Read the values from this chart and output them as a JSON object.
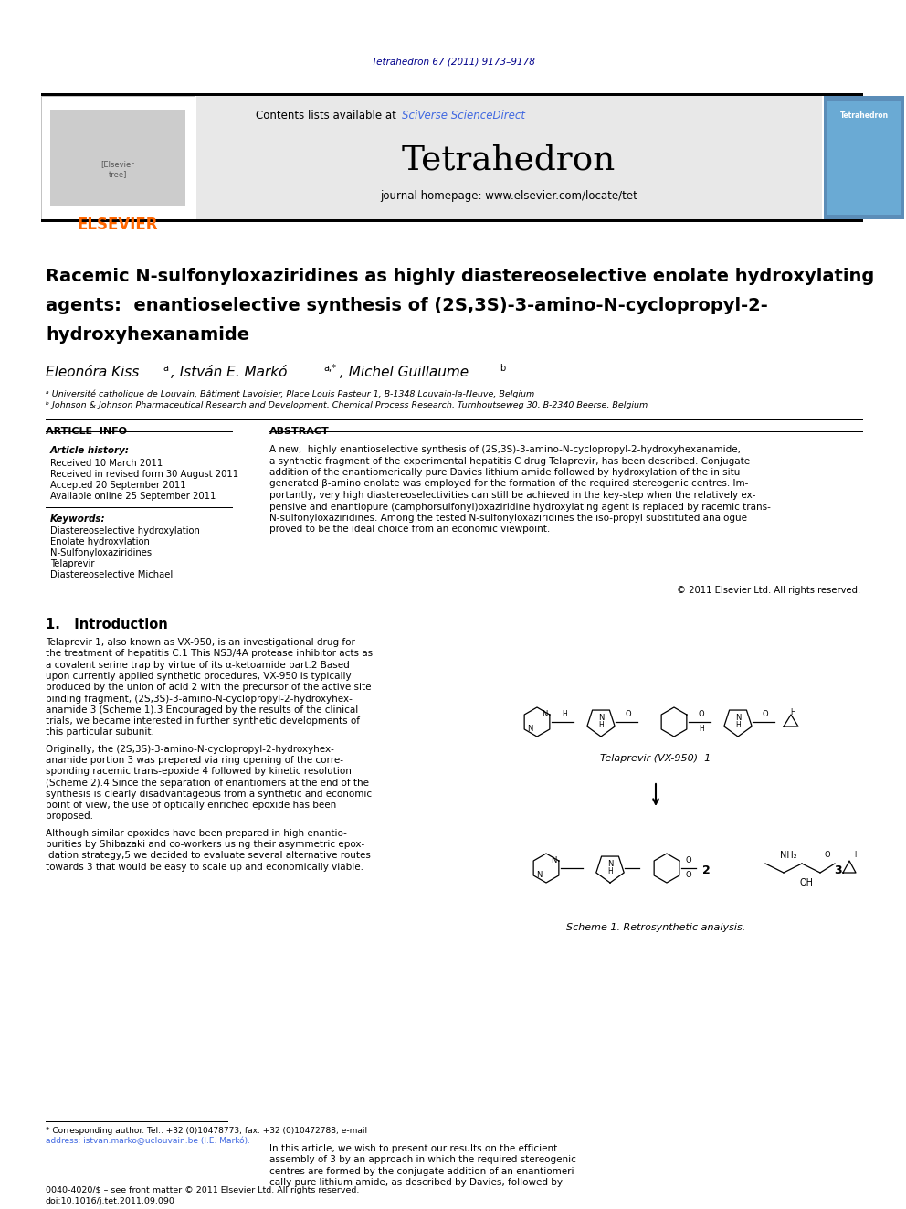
{
  "journal_header_text": "Tetrahedron 67 (2011) 9173–9178",
  "journal_header_color": "#00008B",
  "journal_name": "Tetrahedron",
  "journal_homepage": "journal homepage: www.elsevier.com/locate/tet",
  "elsevier_color": "#FF6600",
  "blue_link": "#4169E1",
  "paper_title_line1": "Racemic N-sulfonyloxaziridines as highly diastereoselective enolate hydroxylating",
  "paper_title_line2": "agents:  enantioselective synthesis of (2S,3S)-3-amino-N-cyclopropyl-2-",
  "paper_title_line3": "hydroxyhexanamide",
  "affil_a": "ᵃ Université catholique de Louvain, Bâtiment Lavoisier, Place Louis Pasteur 1, B-1348 Louvain-la-Neuve, Belgium",
  "affil_b": "ᵇ Johnson & Johnson Pharmaceutical Research and Development, Chemical Process Research, Turnhoutseweg 30, B-2340 Beerse, Belgium",
  "article_info_title": "ARTICLE  INFO",
  "abstract_title": "ABSTRACT",
  "article_history_title": "Article history:",
  "received": "Received 10 March 2011",
  "revised": "Received in revised form 30 August 2011",
  "accepted": "Accepted 20 September 2011",
  "available": "Available online 25 September 2011",
  "keywords_title": "Keywords:",
  "keywords": [
    "Diastereoselective hydroxylation",
    "Enolate hydroxylation",
    "N-Sulfonyloxaziridines",
    "Telaprevir",
    "Diastereoselective Michael"
  ],
  "abstract_text": "A new,  highly enantioselective synthesis of (2S,3S)-3-amino-N-cyclopropyl-2-hydroxyhexanamide,\na synthetic fragment of the experimental hepatitis C drug Telaprevir, has been described. Conjugate\naddition of the enantiomerically pure Davies lithium amide followed by hydroxylation of the in situ\ngenerated β-amino enolate was employed for the formation of the required stereogenic centres. Im-\nportantly, very high diastereoselectivities can still be achieved in the key-step when the relatively ex-\npensive and enantiopure (camphorsulfonyl)oxaziridine hydroxylating agent is replaced by racemic trans-\nN-sulfonyloxaziridines. Among the tested N-sulfonyloxaziridines the iso-propyl substituted analogue\nproved to be the ideal choice from an economic viewpoint.",
  "copyright": "© 2011 Elsevier Ltd. All rights reserved.",
  "intro_title": "1.   Introduction",
  "intro_text1": "Telaprevir 1, also known as VX-950, is an investigational drug for\nthe treatment of hepatitis C.1 This NS3/4A protease inhibitor acts as\na covalent serine trap by virtue of its α-ketoamide part.2 Based\nupon currently applied synthetic procedures, VX-950 is typically\nproduced by the union of acid 2 with the precursor of the active site\nbinding fragment, (2S,3S)-3-amino-N-cyclopropyl-2-hydroxyhex-\nanamide 3 (Scheme 1).3 Encouraged by the results of the clinical\ntrials, we became interested in further synthetic developments of\nthis particular subunit.",
  "intro_text2": "Originally, the (2S,3S)-3-amino-N-cyclopropyl-2-hydroxyhex-\nanamide portion 3 was prepared via ring opening of the corre-\nsponding racemic trans-epoxide 4 followed by kinetic resolution\n(Scheme 2).4 Since the separation of enantiomers at the end of the\nsynthesis is clearly disadvantageous from a synthetic and economic\npoint of view, the use of optically enriched epoxide has been\nproposed.",
  "intro_text3": "Although similar epoxides have been prepared in high enantio-\npurities by Shibazaki and co-workers using their asymmetric epox-\nidation strategy,5 we decided to evaluate several alternative routes\ntowards 3 that would be easy to scale up and economically viable.",
  "footnote_text1": "* Corresponding author. Tel.: +32 (0)10478773; fax: +32 (0)10472788; e-mail",
  "footnote_text2": "address: istvan.marko@uclouvain.be (I.E. Markó).",
  "footer_text1": "0040-4020/$ – see front matter © 2011 Elsevier Ltd. All rights reserved.",
  "footer_text2": "doi:10.1016/j.tet.2011.09.090",
  "right_col_text": "In this article, we wish to present our results on the efficient\nassembly of 3 by an approach in which the required stereogenic\ncentres are formed by the conjugate addition of an enantiomeri-\ncally pure lithium amide, as described by Davies, followed by",
  "scheme1_caption": "Scheme 1. Retrosynthetic analysis.",
  "telaprevir_label": "Telaprevir (VX-950)· 1",
  "bg_color": "#FFFFFF"
}
